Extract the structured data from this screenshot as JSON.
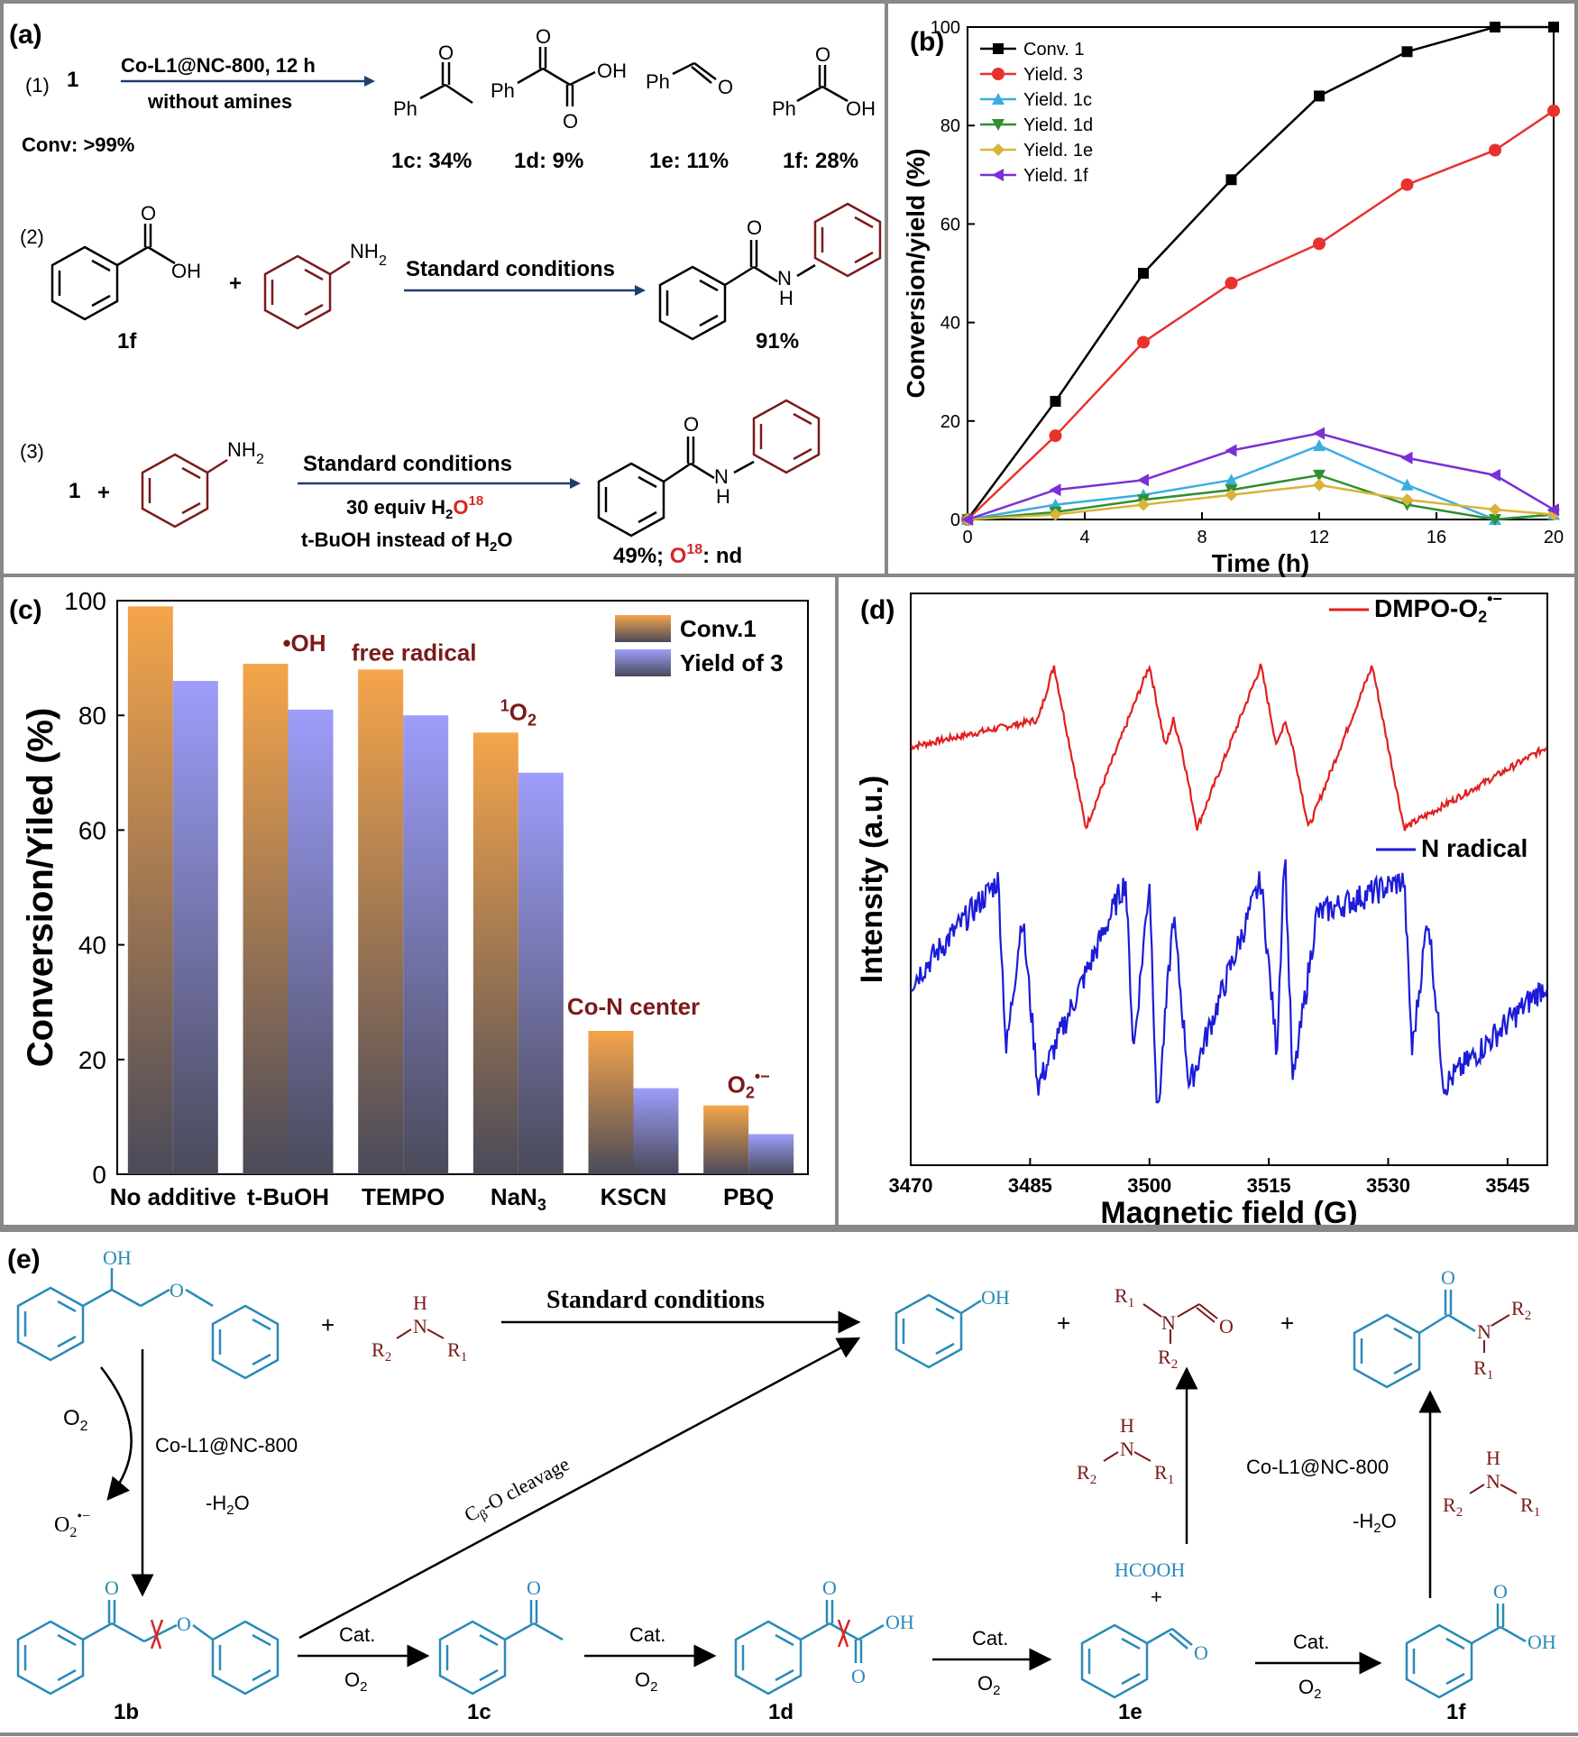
{
  "panel_a": {
    "label": "(a)",
    "r1": {
      "num": "(1)",
      "substrate": "1",
      "cond1": "Co-L1@NC-800, 12 h",
      "cond2": "without amines",
      "conv": "Conv: >99%",
      "products": [
        "1c: 34%",
        "1d: 9%",
        "1e: 11%",
        "1f: 28%"
      ]
    },
    "r2": {
      "num": "(2)",
      "cond": "Standard conditions",
      "acid_label": "1f",
      "yield": "91%"
    },
    "r3": {
      "num": "(3)",
      "substrate": "1",
      "plus": "+",
      "cond1": "Standard conditions",
      "cond2_pre": "30 equiv H",
      "cond2_sub": "2",
      "cond2_o": "O",
      "cond2_sup": "18",
      "cond3_pre": "t-BuOH instead of H",
      "cond3_sub": "2",
      "cond3_post": "O",
      "yield_pre": "49%; ",
      "yield_o": "O",
      "yield_sup": "18",
      "yield_post": ": nd"
    },
    "atoms": {
      "ph": "Ph",
      "o": "O",
      "oh": "OH",
      "nh2": "NH",
      "two": "2",
      "n": "N",
      "h": "H",
      "plus": "+"
    }
  },
  "panel_b": {
    "label": "(b)"
  },
  "panel_c": {
    "label": "(c)"
  },
  "panel_d": {
    "label": "(d)"
  },
  "panel_e": {
    "label": "(e)",
    "std_cond": "Standard conditions",
    "cat_name": "Co-L1@NC-800",
    "minus_h2o_pre": "-H",
    "minus_h2o_sub": "2",
    "minus_h2o_post": "O",
    "o2": "O",
    "o2_sub": "2",
    "cleavage_pre": "C",
    "cleavage_sub": "β",
    "cleavage_post": "-O cleavage",
    "cat": "Cat.",
    "hcooh": "HCOOH",
    "plus": "+",
    "labels": [
      "1b",
      "1c",
      "1d",
      "1e",
      "1f"
    ],
    "atoms": {
      "oh": "OH",
      "o": "O",
      "n": "N",
      "h": "H",
      "r1": "R",
      "r2": "R",
      "s1": "1",
      "s2": "2"
    }
  },
  "colors": {
    "teal": "#2a8ab8",
    "maroon": "#7b1a1a",
    "red": "#d62728",
    "blue": "#1f1fd6",
    "orange": "#f5a54a",
    "lavender": "#9d9dfb"
  },
  "chart_data": [
    {
      "type": "line",
      "title": "",
      "xlabel": "Time (h)",
      "ylabel": "Conversion/yield (%)",
      "xlim": [
        0,
        20
      ],
      "ylim": [
        0,
        100
      ],
      "xticks": [
        0,
        4,
        8,
        12,
        16,
        20
      ],
      "yticks": [
        0,
        20,
        40,
        60,
        80,
        100
      ],
      "x": [
        0,
        3,
        6,
        9,
        12,
        15,
        18,
        20
      ],
      "series": [
        {
          "name": "Conv. 1",
          "color": "#000000",
          "marker": "square",
          "values": [
            0,
            24,
            50,
            69,
            86,
            95,
            100,
            100
          ]
        },
        {
          "name": "Yield. 3",
          "color": "#e8322e",
          "marker": "circle",
          "values": [
            0,
            17,
            36,
            48,
            56,
            68,
            75,
            83
          ]
        },
        {
          "name": "Yield. 1c",
          "color": "#3aaee0",
          "marker": "triangle-up",
          "values": [
            0,
            3,
            5,
            8,
            15,
            7,
            0,
            1
          ]
        },
        {
          "name": "Yield. 1d",
          "color": "#2f8f2f",
          "marker": "triangle-down",
          "values": [
            0,
            1.5,
            4,
            6,
            9,
            3,
            0,
            1
          ]
        },
        {
          "name": "Yield. 1e",
          "color": "#d9b43a",
          "marker": "diamond",
          "values": [
            0,
            1,
            3,
            5,
            7,
            4,
            2,
            1
          ]
        },
        {
          "name": "Yield. 1f",
          "color": "#7b2fd6",
          "marker": "triangle-left",
          "values": [
            0,
            6,
            8,
            14,
            17.5,
            12.5,
            9,
            2
          ]
        }
      ]
    },
    {
      "type": "bar",
      "title": "",
      "xlabel": "",
      "ylabel": "Conversion/Yiled (%)",
      "ylim": [
        0,
        100
      ],
      "yticks": [
        0,
        20,
        40,
        60,
        80,
        100
      ],
      "categories": [
        "No additive",
        "t-BuOH",
        "TEMPO",
        "NaN",
        "KSCN",
        "PBQ"
      ],
      "category_subscripts": [
        "",
        "",
        "",
        "3",
        "",
        ""
      ],
      "series": [
        {
          "name": "Conv.1",
          "color": "#f5a54a",
          "values": [
            99,
            89,
            88,
            77,
            25,
            12
          ]
        },
        {
          "name": "Yield of 3",
          "color": "#9d9dfb",
          "values": [
            86,
            81,
            80,
            70,
            15,
            7
          ]
        }
      ],
      "annotations": [
        {
          "text": "•OH",
          "over": "t-BuOH"
        },
        {
          "text": "free radical",
          "over": "TEMPO"
        },
        {
          "text": "O",
          "pre_sup": "1",
          "sub": "2",
          "over": "NaN"
        },
        {
          "text": "Co-N center",
          "over": "KSCN"
        },
        {
          "text": "O",
          "sub": "2",
          "sup": "•−",
          "over": "PBQ"
        }
      ]
    },
    {
      "type": "line",
      "title": "",
      "xlabel": "Magnetic field (G)",
      "ylabel": "Intensity (a.u.)",
      "xlim": [
        3470,
        3550
      ],
      "xticks": [
        3470,
        3485,
        3500,
        3515,
        3530,
        3545
      ],
      "series": [
        {
          "name": "DMPO-O",
          "name_sub": "2",
          "name_sup": "•−",
          "color": "#e02020",
          "x": [
            3470,
            3486,
            3488,
            3490,
            3492,
            3500,
            3502,
            3503,
            3504,
            3506,
            3514,
            3516,
            3517,
            3518,
            3520,
            3528,
            3530,
            3532,
            3550
          ],
          "values": [
            0,
            1,
            3,
            0,
            -3,
            3,
            0,
            1,
            0,
            -3,
            3,
            0,
            1,
            0,
            -3,
            3,
            0,
            -3,
            0
          ]
        },
        {
          "name": "N radical",
          "color": "#1c1cd8",
          "x": [
            3470,
            3481,
            3482,
            3484,
            3486,
            3497,
            3498,
            3500,
            3501,
            3503,
            3505,
            3514,
            3516,
            3517,
            3518,
            3521,
            3532,
            3533,
            3535,
            3537,
            3550
          ],
          "values": [
            0,
            3,
            -2,
            2,
            -3,
            3,
            -2,
            3,
            -4,
            2,
            -3,
            3,
            -2,
            4,
            -3,
            2,
            3,
            -2,
            2,
            -3,
            0
          ]
        }
      ]
    }
  ]
}
